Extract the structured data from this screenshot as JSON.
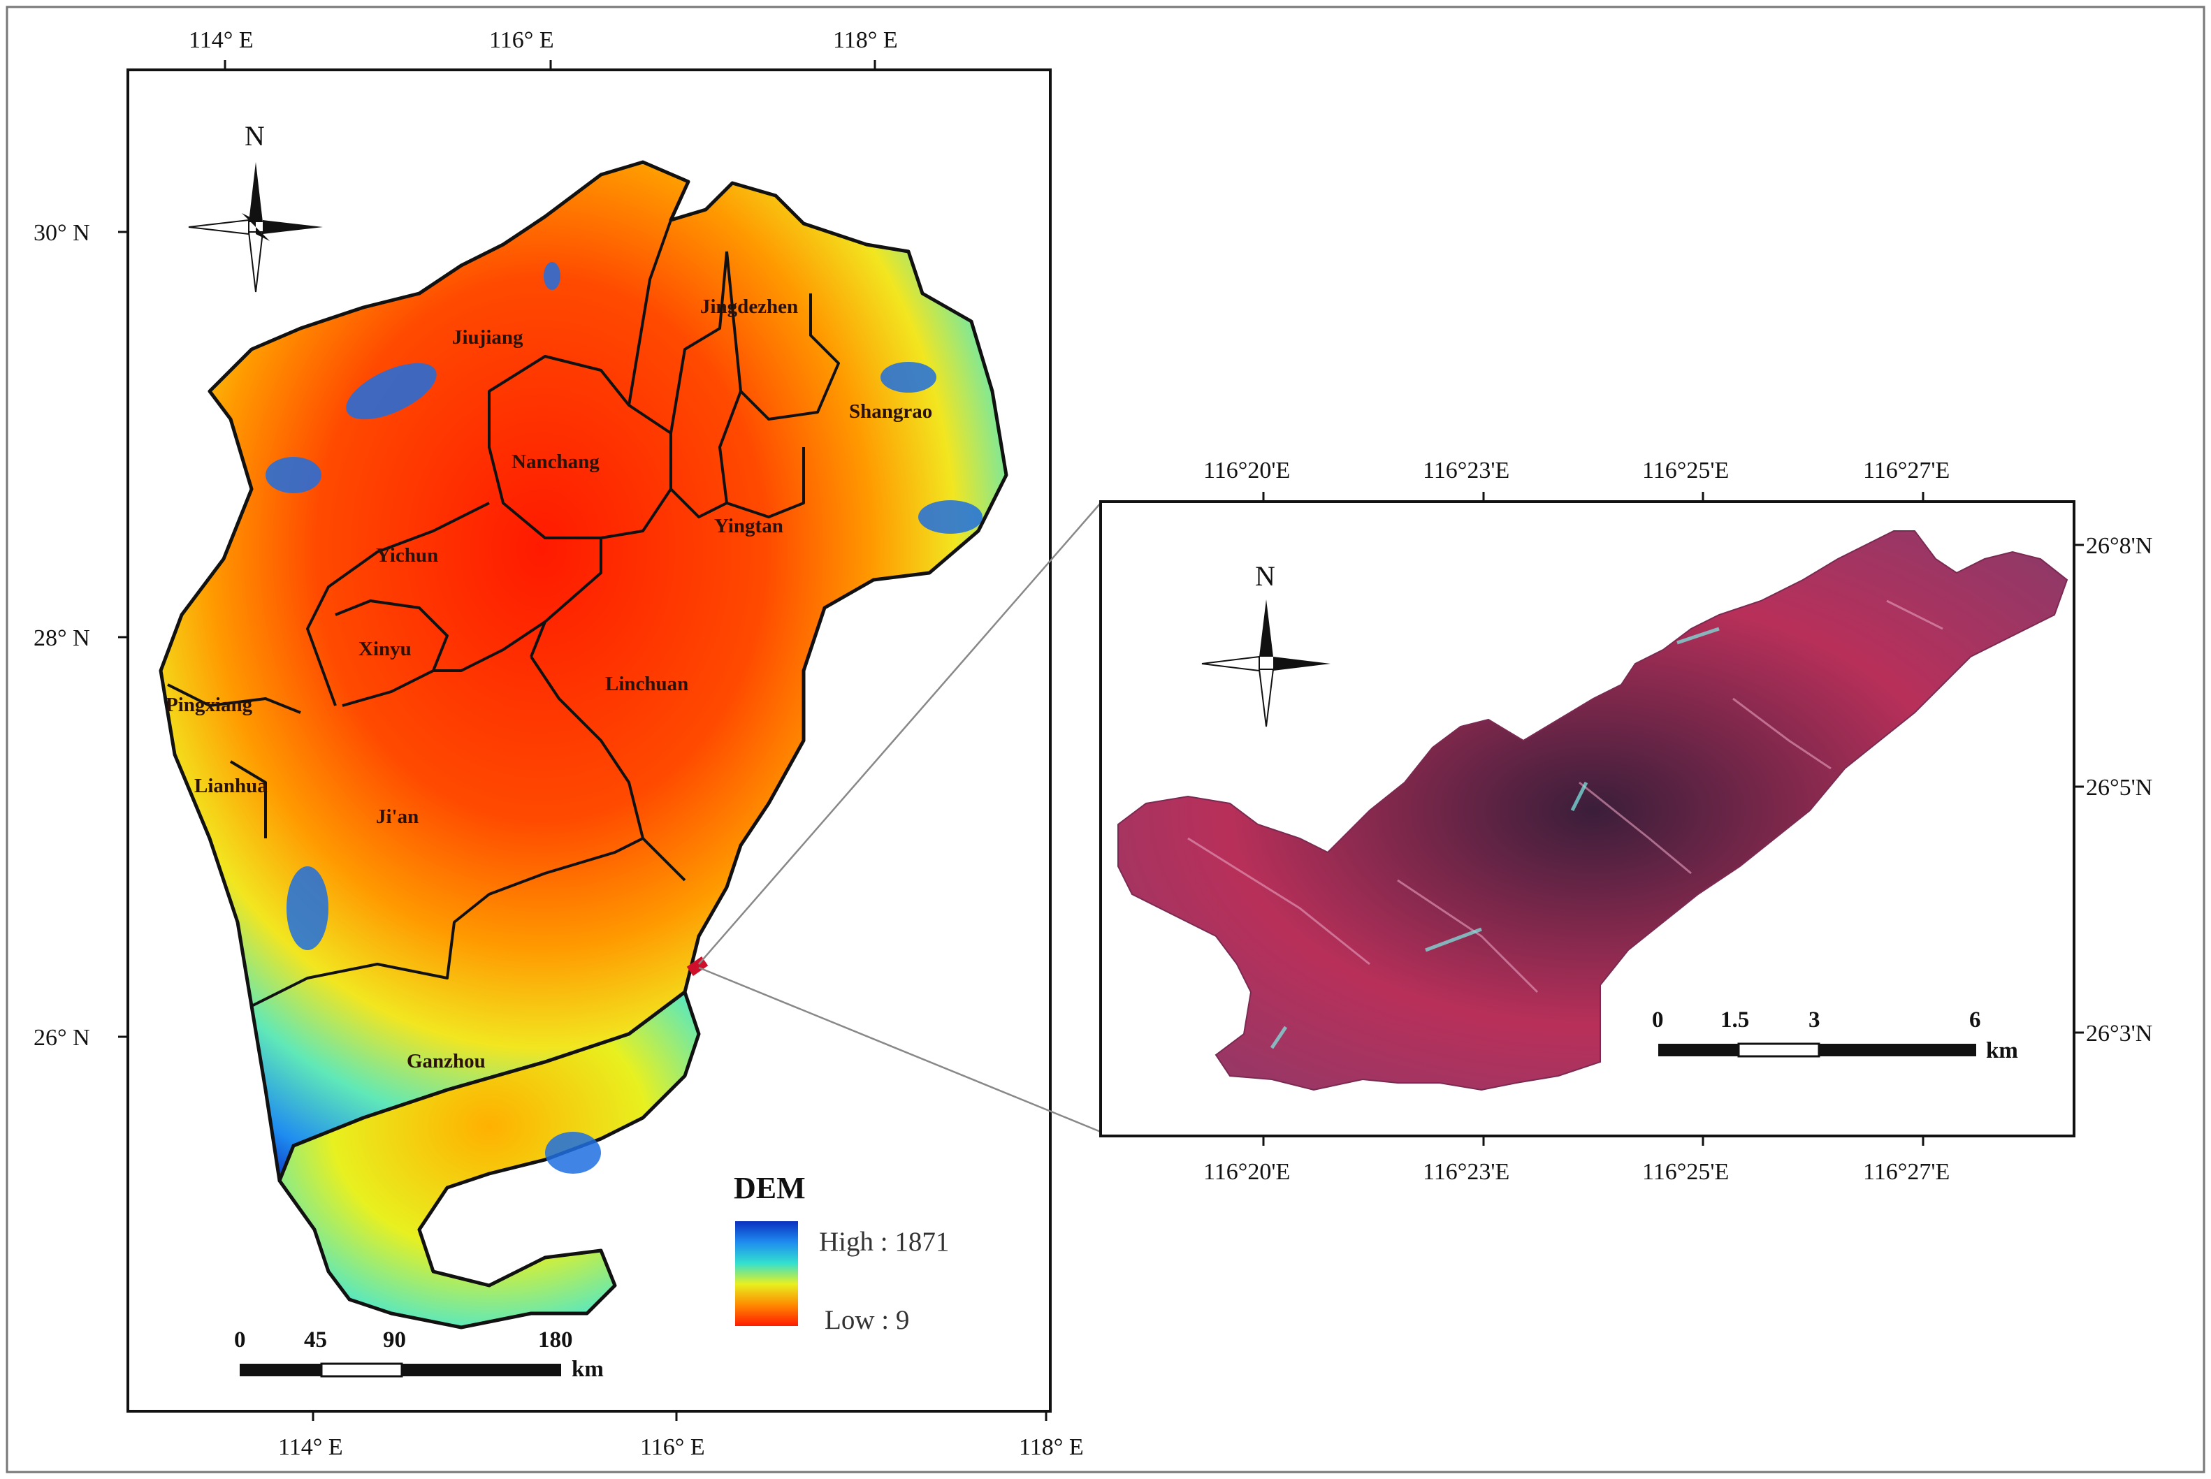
{
  "main_map": {
    "top_lon_labels": [
      "114° E",
      "116° E",
      "118° E"
    ],
    "bottom_lon_labels": [
      "114° E",
      "116° E",
      "118° E"
    ],
    "lat_labels": [
      "30° N",
      "28° N",
      "26° N"
    ],
    "north_label": "N",
    "cities": [
      "Jiujiang",
      "Jingdezhen",
      "Shangrao",
      "Nanchang",
      "Yingtan",
      "Yichun",
      "Xinyu",
      "Pingxiang",
      "Linchuan",
      "Lianhua",
      "Ji'an",
      "Ganzhou"
    ],
    "legend": {
      "title": "DEM",
      "high": "High : 1871",
      "low": "Low : 9",
      "colors": [
        "#0a2fbf",
        "#1e8cf0",
        "#32e0d0",
        "#e8f020",
        "#ff8a00",
        "#ff1a00"
      ]
    },
    "scale": {
      "ticks": [
        "0",
        "45",
        "90",
        "180"
      ],
      "unit": "km"
    }
  },
  "inset_map": {
    "top_lon_labels": [
      "116°20'E",
      "116°23'E",
      "116°25'E",
      "116°27'E"
    ],
    "bottom_lon_labels": [
      "116°20'E",
      "116°23'E",
      "116°25'E",
      "116°27'E"
    ],
    "lat_labels": [
      "26°8'N",
      "26°5'N",
      "26°3'N"
    ],
    "north_label": "N",
    "scale": {
      "ticks": [
        "0",
        "1.5",
        "3",
        "6"
      ],
      "unit": "km"
    },
    "image_color": "#b8305a"
  }
}
